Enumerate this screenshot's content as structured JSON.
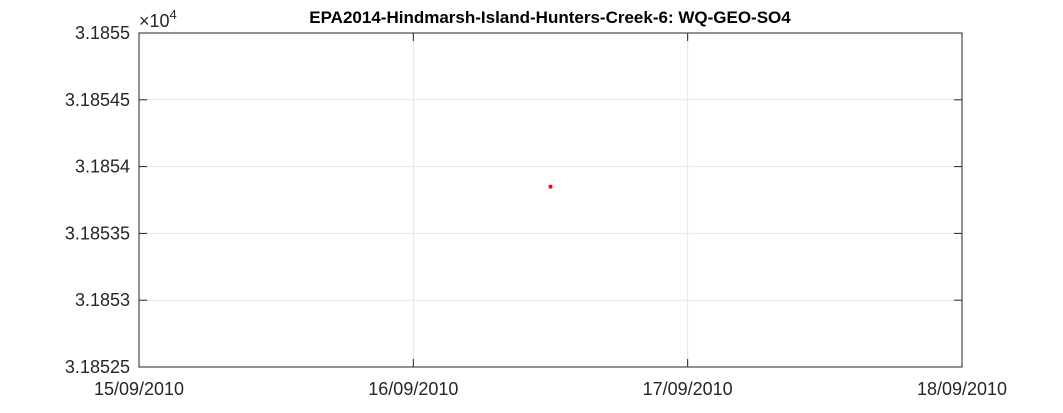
{
  "chart_data": {
    "type": "scatter",
    "title": "EPA2014-Hindmarsh-Island-Hunters-Creek-6: WQ-GEO-SO4",
    "xlabel": "",
    "ylabel": "",
    "x_ticks": [
      "15/09/2010",
      "16/09/2010",
      "17/09/2010",
      "18/09/2010"
    ],
    "xlim": [
      "15/09/2010",
      "18/09/2010"
    ],
    "y_ticks": [
      "3.18525",
      "3.1853",
      "3.18535",
      "3.1854",
      "3.18545",
      "3.1855"
    ],
    "ylim": [
      3.18525,
      3.1855
    ],
    "y_multiplier": {
      "base": "×10",
      "exponent": "4"
    },
    "grid": true,
    "series": [
      {
        "color": "#ff0000",
        "points": [
          {
            "x": "16/09/2010 12:00",
            "y": 3.185385
          }
        ]
      }
    ]
  }
}
